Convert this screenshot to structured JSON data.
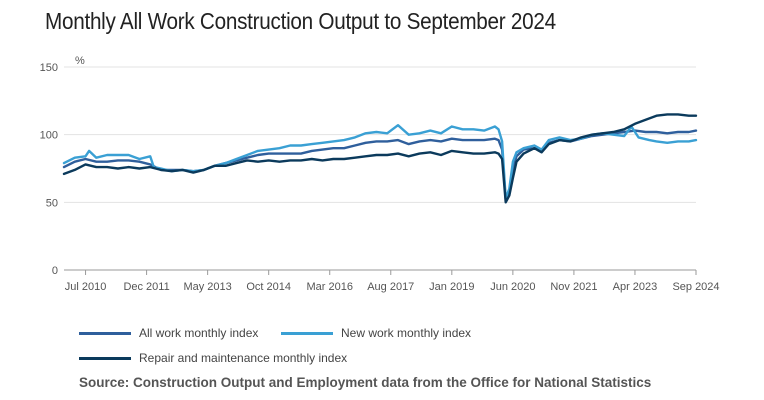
{
  "title": "Monthly All Work Construction Output to September 2024",
  "source": "Source: Construction Output and Employment data from the Office for National Statistics",
  "chart_data": {
    "type": "line",
    "ylabel": "%",
    "ylim": [
      0,
      150
    ],
    "yticks": [
      0,
      50,
      100,
      150
    ],
    "xlim": [
      "2010-01",
      "2024-09"
    ],
    "xticks": [
      {
        "date": "2010-07",
        "label": "Jul 2010"
      },
      {
        "date": "2011-12",
        "label": "Dec 2011"
      },
      {
        "date": "2013-05",
        "label": "May 2013"
      },
      {
        "date": "2014-10",
        "label": "Oct 2014"
      },
      {
        "date": "2016-03",
        "label": "Mar 2016"
      },
      {
        "date": "2017-08",
        "label": "Aug 2017"
      },
      {
        "date": "2019-01",
        "label": "Jan 2019"
      },
      {
        "date": "2020-06",
        "label": "Jun 2020"
      },
      {
        "date": "2021-11",
        "label": "Nov 2021"
      },
      {
        "date": "2023-04",
        "label": "Apr 2023"
      },
      {
        "date": "2024-09",
        "label": "Sep 2024"
      }
    ],
    "grid": "horizontal",
    "legend_position": "bottom",
    "series": [
      {
        "name": "All work monthly index",
        "color": "#2f5f9c",
        "points": [
          [
            "2010-01",
            76
          ],
          [
            "2010-04",
            80
          ],
          [
            "2010-07",
            82
          ],
          [
            "2010-10",
            80
          ],
          [
            "2011-01",
            80
          ],
          [
            "2011-04",
            81
          ],
          [
            "2011-07",
            81
          ],
          [
            "2011-10",
            80
          ],
          [
            "2012-01",
            78
          ],
          [
            "2012-04",
            74
          ],
          [
            "2012-07",
            74
          ],
          [
            "2012-10",
            74
          ],
          [
            "2013-01",
            73
          ],
          [
            "2013-04",
            74
          ],
          [
            "2013-07",
            77
          ],
          [
            "2013-10",
            79
          ],
          [
            "2014-01",
            81
          ],
          [
            "2014-04",
            83
          ],
          [
            "2014-07",
            85
          ],
          [
            "2014-10",
            86
          ],
          [
            "2015-01",
            86
          ],
          [
            "2015-04",
            86
          ],
          [
            "2015-07",
            86
          ],
          [
            "2015-10",
            88
          ],
          [
            "2016-01",
            89
          ],
          [
            "2016-04",
            90
          ],
          [
            "2016-07",
            90
          ],
          [
            "2016-10",
            92
          ],
          [
            "2017-01",
            94
          ],
          [
            "2017-04",
            95
          ],
          [
            "2017-07",
            95
          ],
          [
            "2017-10",
            96
          ],
          [
            "2018-01",
            93
          ],
          [
            "2018-04",
            95
          ],
          [
            "2018-07",
            96
          ],
          [
            "2018-10",
            95
          ],
          [
            "2019-01",
            97
          ],
          [
            "2019-04",
            96
          ],
          [
            "2019-07",
            96
          ],
          [
            "2019-10",
            96
          ],
          [
            "2020-01",
            97
          ],
          [
            "2020-02",
            96
          ],
          [
            "2020-03",
            89
          ],
          [
            "2020-04",
            52
          ],
          [
            "2020-05",
            58
          ],
          [
            "2020-06",
            75
          ],
          [
            "2020-07",
            84
          ],
          [
            "2020-09",
            89
          ],
          [
            "2020-12",
            90
          ],
          [
            "2021-02",
            88
          ],
          [
            "2021-04",
            94
          ],
          [
            "2021-07",
            96
          ],
          [
            "2021-10",
            95
          ],
          [
            "2022-01",
            97
          ],
          [
            "2022-04",
            99
          ],
          [
            "2022-07",
            100
          ],
          [
            "2022-10",
            101
          ],
          [
            "2023-01",
            102
          ],
          [
            "2023-04",
            103
          ],
          [
            "2023-07",
            102
          ],
          [
            "2023-10",
            102
          ],
          [
            "2024-01",
            101
          ],
          [
            "2024-04",
            102
          ],
          [
            "2024-07",
            102
          ],
          [
            "2024-09",
            103
          ]
        ]
      },
      {
        "name": "New work monthly index",
        "color": "#3aa0d4",
        "points": [
          [
            "2010-01",
            79
          ],
          [
            "2010-04",
            83
          ],
          [
            "2010-07",
            84
          ],
          [
            "2010-08",
            88
          ],
          [
            "2010-10",
            83
          ],
          [
            "2011-01",
            85
          ],
          [
            "2011-04",
            85
          ],
          [
            "2011-07",
            85
          ],
          [
            "2011-10",
            82
          ],
          [
            "2012-01",
            84
          ],
          [
            "2012-02",
            76
          ],
          [
            "2012-04",
            75
          ],
          [
            "2012-07",
            73
          ],
          [
            "2012-10",
            74
          ],
          [
            "2013-01",
            73
          ],
          [
            "2013-04",
            74
          ],
          [
            "2013-07",
            77
          ],
          [
            "2013-10",
            79
          ],
          [
            "2014-01",
            82
          ],
          [
            "2014-04",
            85
          ],
          [
            "2014-07",
            88
          ],
          [
            "2014-10",
            89
          ],
          [
            "2015-01",
            90
          ],
          [
            "2015-04",
            92
          ],
          [
            "2015-07",
            92
          ],
          [
            "2015-10",
            93
          ],
          [
            "2016-01",
            94
          ],
          [
            "2016-04",
            95
          ],
          [
            "2016-07",
            96
          ],
          [
            "2016-10",
            98
          ],
          [
            "2017-01",
            101
          ],
          [
            "2017-04",
            102
          ],
          [
            "2017-07",
            101
          ],
          [
            "2017-10",
            107
          ],
          [
            "2018-01",
            100
          ],
          [
            "2018-04",
            101
          ],
          [
            "2018-07",
            103
          ],
          [
            "2018-10",
            101
          ],
          [
            "2019-01",
            106
          ],
          [
            "2019-04",
            104
          ],
          [
            "2019-07",
            104
          ],
          [
            "2019-10",
            103
          ],
          [
            "2020-01",
            106
          ],
          [
            "2020-02",
            104
          ],
          [
            "2020-03",
            95
          ],
          [
            "2020-04",
            53
          ],
          [
            "2020-05",
            60
          ],
          [
            "2020-06",
            80
          ],
          [
            "2020-07",
            87
          ],
          [
            "2020-09",
            90
          ],
          [
            "2020-12",
            92
          ],
          [
            "2021-02",
            89
          ],
          [
            "2021-04",
            96
          ],
          [
            "2021-07",
            98
          ],
          [
            "2021-10",
            96
          ],
          [
            "2022-01",
            97
          ],
          [
            "2022-04",
            100
          ],
          [
            "2022-07",
            101
          ],
          [
            "2022-10",
            100
          ],
          [
            "2023-01",
            99
          ],
          [
            "2023-03",
            106
          ],
          [
            "2023-05",
            98
          ],
          [
            "2023-08",
            96
          ],
          [
            "2023-10",
            95
          ],
          [
            "2024-01",
            94
          ],
          [
            "2024-04",
            95
          ],
          [
            "2024-07",
            95
          ],
          [
            "2024-09",
            96
          ]
        ]
      },
      {
        "name": "Repair and maintenance monthly index",
        "color": "#0b3a5c",
        "points": [
          [
            "2010-01",
            71
          ],
          [
            "2010-04",
            74
          ],
          [
            "2010-07",
            78
          ],
          [
            "2010-10",
            76
          ],
          [
            "2011-01",
            76
          ],
          [
            "2011-04",
            75
          ],
          [
            "2011-07",
            76
          ],
          [
            "2011-10",
            75
          ],
          [
            "2012-01",
            76
          ],
          [
            "2012-04",
            74
          ],
          [
            "2012-07",
            73
          ],
          [
            "2012-10",
            74
          ],
          [
            "2013-01",
            72
          ],
          [
            "2013-04",
            74
          ],
          [
            "2013-07",
            77
          ],
          [
            "2013-10",
            77
          ],
          [
            "2014-01",
            79
          ],
          [
            "2014-04",
            81
          ],
          [
            "2014-07",
            80
          ],
          [
            "2014-10",
            81
          ],
          [
            "2015-01",
            80
          ],
          [
            "2015-04",
            81
          ],
          [
            "2015-07",
            81
          ],
          [
            "2015-10",
            82
          ],
          [
            "2016-01",
            81
          ],
          [
            "2016-04",
            82
          ],
          [
            "2016-07",
            82
          ],
          [
            "2016-10",
            83
          ],
          [
            "2017-01",
            84
          ],
          [
            "2017-04",
            85
          ],
          [
            "2017-07",
            85
          ],
          [
            "2017-10",
            86
          ],
          [
            "2018-01",
            84
          ],
          [
            "2018-04",
            86
          ],
          [
            "2018-07",
            87
          ],
          [
            "2018-10",
            85
          ],
          [
            "2019-01",
            88
          ],
          [
            "2019-04",
            87
          ],
          [
            "2019-07",
            86
          ],
          [
            "2019-10",
            86
          ],
          [
            "2020-01",
            87
          ],
          [
            "2020-02",
            86
          ],
          [
            "2020-03",
            82
          ],
          [
            "2020-04",
            50
          ],
          [
            "2020-05",
            55
          ],
          [
            "2020-06",
            68
          ],
          [
            "2020-07",
            80
          ],
          [
            "2020-09",
            86
          ],
          [
            "2020-12",
            90
          ],
          [
            "2021-02",
            87
          ],
          [
            "2021-04",
            93
          ],
          [
            "2021-07",
            96
          ],
          [
            "2021-10",
            95
          ],
          [
            "2022-01",
            98
          ],
          [
            "2022-04",
            100
          ],
          [
            "2022-07",
            101
          ],
          [
            "2022-10",
            102
          ],
          [
            "2023-01",
            104
          ],
          [
            "2023-04",
            108
          ],
          [
            "2023-07",
            111
          ],
          [
            "2023-10",
            114
          ],
          [
            "2024-01",
            115
          ],
          [
            "2024-04",
            115
          ],
          [
            "2024-07",
            114
          ],
          [
            "2024-09",
            114
          ]
        ]
      }
    ]
  }
}
